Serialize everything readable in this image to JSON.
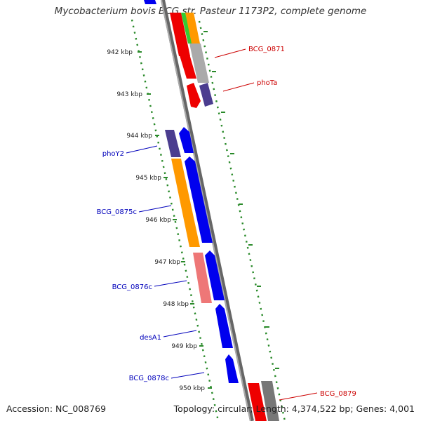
{
  "title": "Mycobacterium bovis BCG str. Pasteur 1173P2, complete genome",
  "accession": "Accession: NC_008769",
  "summary": "Topology: circular; Length: 4,374,522 bp; Genes: 4,001",
  "colors": {
    "backbone": "#888888",
    "tick": "#2a8a2a",
    "label_forward": "#cc0000",
    "label_reverse": "#0000bb",
    "red": "#ee0000",
    "orange": "#ff9900",
    "green": "#33cc33",
    "gray": "#aaaaaa",
    "purple": "#4b3d8f",
    "blue": "#0000ee",
    "pink": "#ee7777"
  },
  "kbp_labels": [
    "942 kbp",
    "943 kbp",
    "944 kbp",
    "945 kbp",
    "946 kbp",
    "947 kbp",
    "948 kbp",
    "949 kbp",
    "950 kbp"
  ],
  "gene_labels": {
    "forward": [
      "BCG_0871",
      "phoTa",
      "BCG_0879"
    ],
    "reverse": [
      "phoY2",
      "BCG_0875c",
      "BCG_0876c",
      "desA1",
      "BCG_0878c"
    ]
  }
}
